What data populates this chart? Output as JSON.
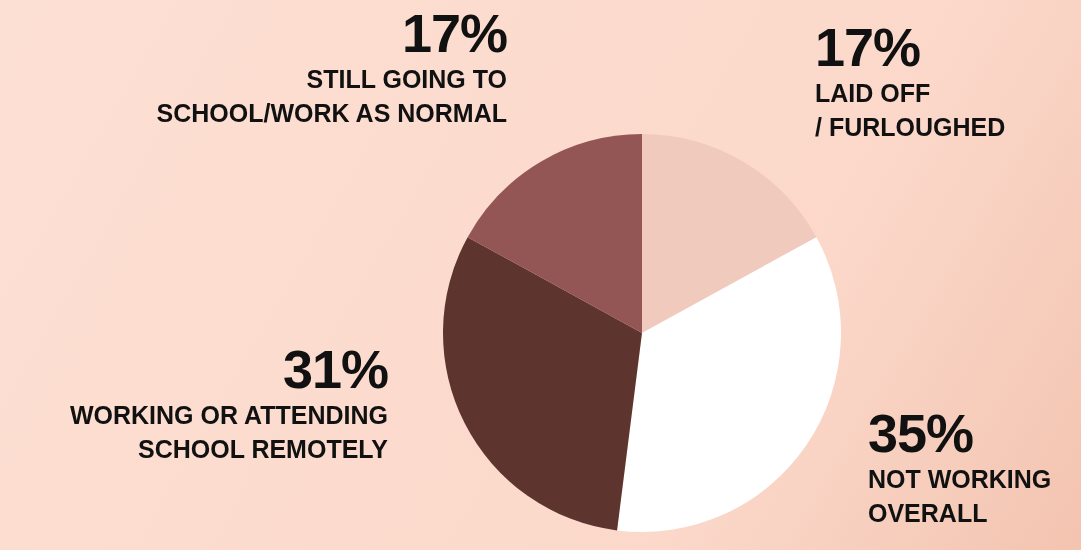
{
  "chart_data": {
    "type": "pie",
    "categories": [
      "LAID OFF / FURLOUGHED",
      "NOT WORKING OVERALL",
      "WORKING OR ATTENDING SCHOOL REMOTELY",
      "STILL GOING TO SCHOOL/WORK AS NORMAL"
    ],
    "values": [
      17,
      35,
      31,
      17
    ],
    "value_labels": [
      "17%",
      "35%",
      "31%",
      "17%"
    ],
    "colors": [
      "#f0cbbd",
      "#ffffff",
      "#5e342f",
      "#935655"
    ],
    "legend": false
  }
}
